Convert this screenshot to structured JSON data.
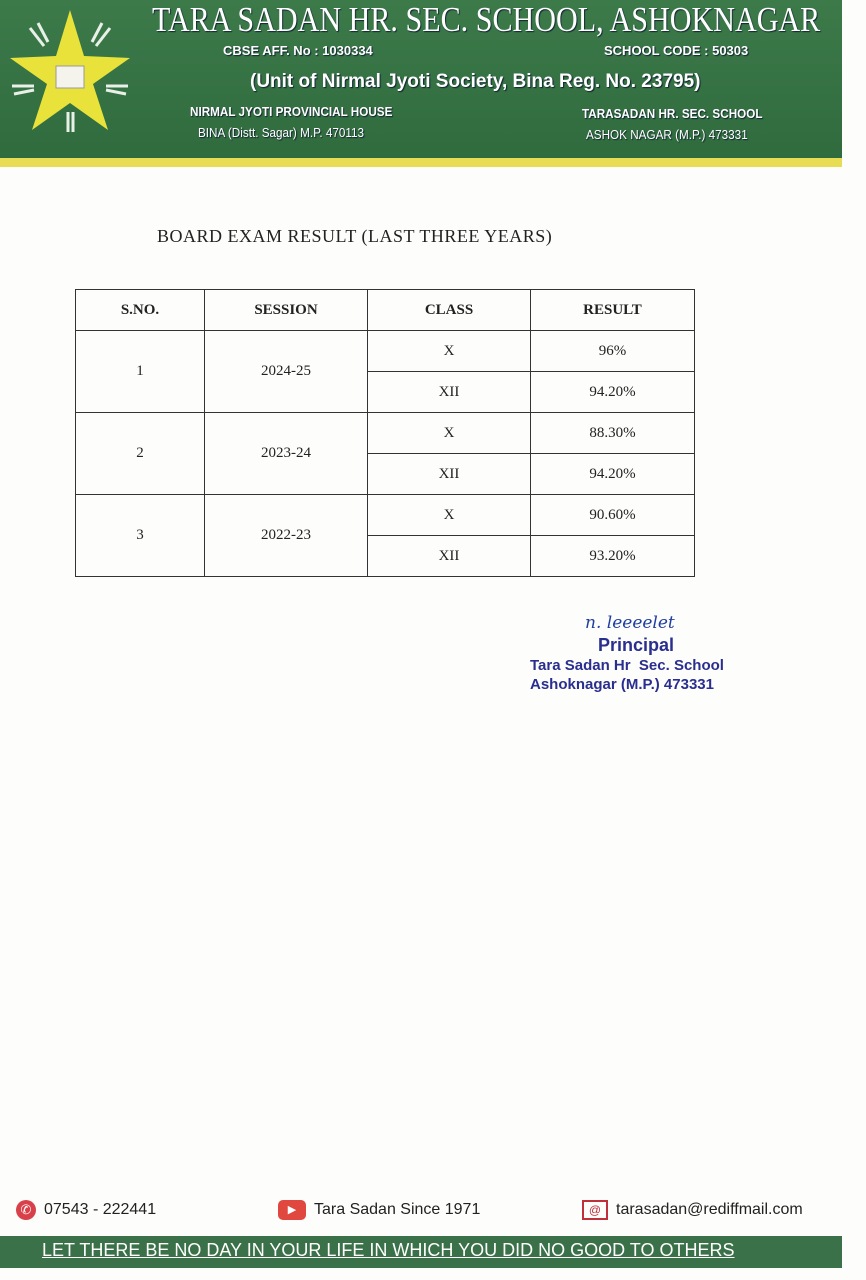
{
  "header": {
    "school_name": "TARA SADAN HR. SEC. SCHOOL, ASHOKNAGAR",
    "cbse_aff": "CBSE AFF. No : 1030334",
    "school_code": "SCHOOL CODE : 50303",
    "unit_of": "(Unit of Nirmal Jyoti Society, Bina Reg. No. 23795)",
    "left_address": [
      "NIRMAL JYOTI PROVINCIAL HOUSE",
      "BINA (Distt. Sagar) M.P. 470113"
    ],
    "right_address": [
      "TARASADAN HR. SEC. SCHOOL",
      "ASHOK NAGAR (M.P.) 473331"
    ],
    "colors": {
      "band": "#2f6b3d",
      "stripe": "#e9dc55",
      "star": "#e8e23a"
    }
  },
  "document": {
    "title": "BOARD EXAM RESULT (LAST THREE YEARS)",
    "table": {
      "headers": [
        "S.NO.",
        "SESSION",
        "CLASS",
        "RESULT"
      ],
      "rows": [
        {
          "sno": "1",
          "session": "2024-25",
          "results": [
            {
              "class": "X",
              "result": "96%"
            },
            {
              "class": "XII",
              "result": "94.20%"
            }
          ]
        },
        {
          "sno": "2",
          "session": "2023-24",
          "results": [
            {
              "class": "X",
              "result": "88.30%"
            },
            {
              "class": "XII",
              "result": "94.20%"
            }
          ]
        },
        {
          "sno": "3",
          "session": "2022-23",
          "results": [
            {
              "class": "X",
              "result": "90.60%"
            },
            {
              "class": "XII",
              "result": "93.20%"
            }
          ]
        }
      ]
    },
    "signature": {
      "signed": "n. leeeelet",
      "lines": [
        "Principal",
        "Tara Sadan Hr  Sec. School",
        "Ashoknagar (M.P.) 473331"
      ]
    }
  },
  "footer": {
    "phone": "07543 - 222441",
    "youtube": "Tara Sadan Since 1971",
    "email": "tarasadan@rediffmail.com",
    "motto": "LET THERE BE NO DAY IN YOUR LIFE IN WHICH YOU DID NO GOOD TO OTHERS"
  }
}
